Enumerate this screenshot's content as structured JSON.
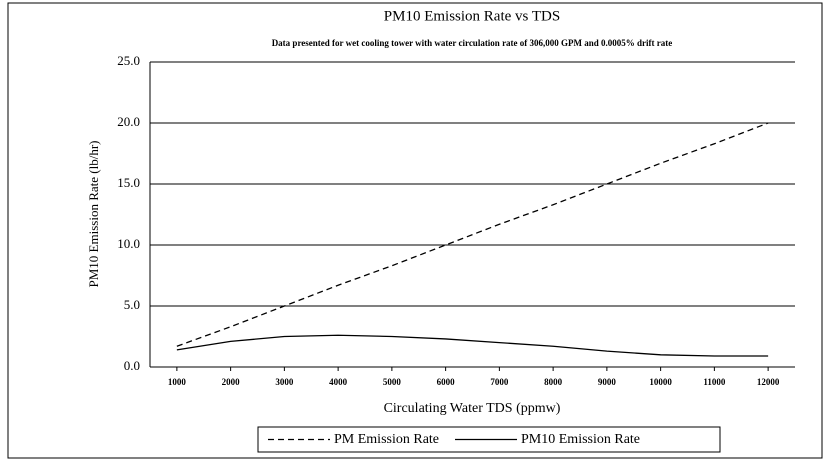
{
  "chart_data": {
    "type": "line",
    "title": "PM10 Emission Rate vs TDS",
    "subtitle": "Data presented for wet cooling tower with water circulation rate of 306,000 GPM and 0.0005% drift rate",
    "x_label": "Circulating Water TDS (ppmw)",
    "y_label": "PM10 Emission Rate (lb/hr)",
    "x": [
      1000,
      2000,
      3000,
      4000,
      5000,
      6000,
      7000,
      8000,
      9000,
      10000,
      11000,
      12000
    ],
    "series": [
      {
        "name": "PM Emission Rate",
        "color": "#000000",
        "dash": true,
        "values": [
          1.7,
          3.3,
          5.0,
          6.7,
          8.3,
          10.0,
          11.7,
          13.3,
          15.0,
          16.7,
          18.3,
          20.0
        ]
      },
      {
        "name": "PM10 Emission Rate",
        "color": "#000000",
        "dash": false,
        "values": [
          1.4,
          2.1,
          2.5,
          2.6,
          2.5,
          2.3,
          2.0,
          1.7,
          1.3,
          1.0,
          0.9,
          0.9
        ]
      }
    ],
    "xlim": [
      500,
      12500
    ],
    "xticks": [
      1000,
      2000,
      3000,
      4000,
      5000,
      6000,
      7000,
      8000,
      9000,
      10000,
      11000,
      12000
    ],
    "ylim": [
      0,
      25
    ],
    "yticks": [
      {
        "value": 0,
        "label": "0.0"
      },
      {
        "value": 5,
        "label": "5.0"
      },
      {
        "value": 10,
        "label": "10.0"
      },
      {
        "value": 15,
        "label": "15.0"
      },
      {
        "value": 20,
        "label": "20.0"
      },
      {
        "value": 25,
        "label": "25.0"
      }
    ],
    "grid": true,
    "legend": "bottom"
  }
}
